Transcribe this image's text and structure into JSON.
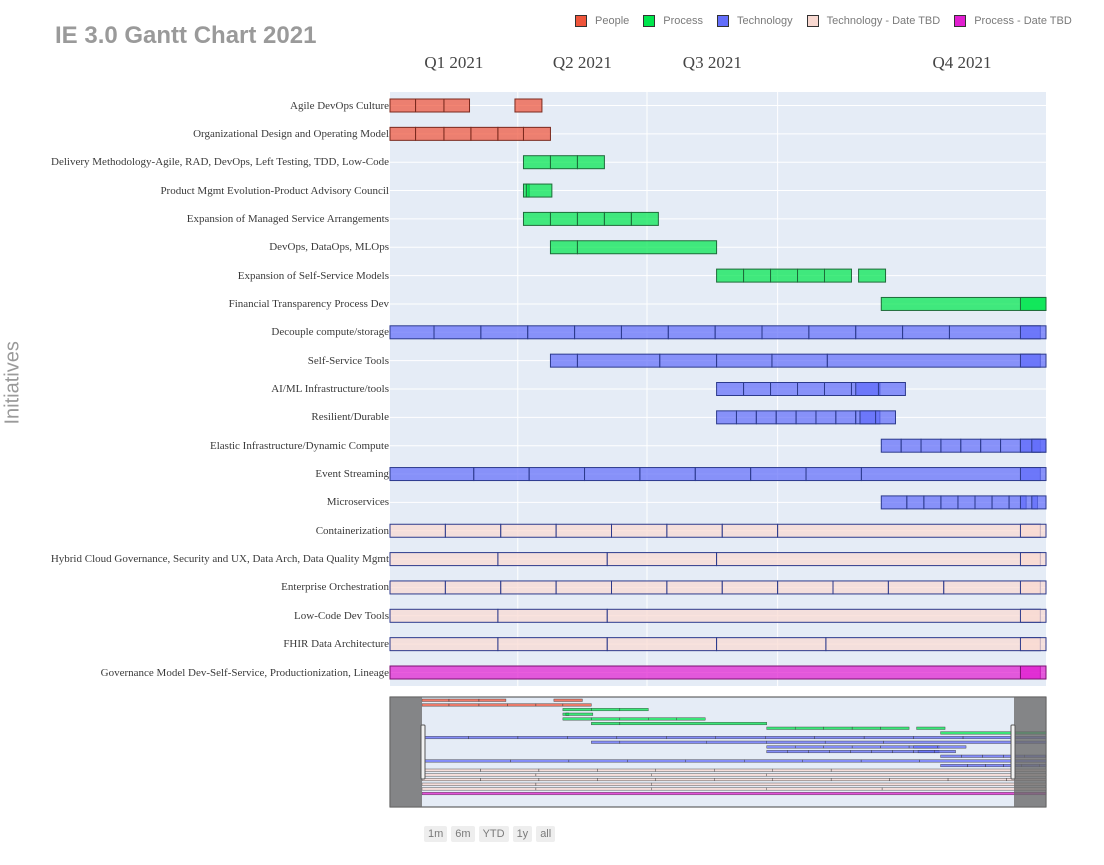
{
  "title": "IE 3.0 Gantt Chart 2021",
  "legend": [
    {
      "name": "People",
      "color": "#ef553b"
    },
    {
      "name": "Process",
      "color": "#00e64d"
    },
    {
      "name": "Technology",
      "color": "#636efa"
    },
    {
      "name": "Technology - Date TBD",
      "color": "#f9d9d1"
    },
    {
      "name": "Process - Date TBD",
      "color": "#e11fd0"
    }
  ],
  "range_buttons": [
    "1m",
    "6m",
    "YTD",
    "1y",
    "all"
  ],
  "chart_data": {
    "type": "gantt",
    "ylabel": "Initiatives",
    "x_tick_labels": [
      "Q1 2021",
      "Q2 2021",
      "Q3 2021",
      "Q4 2021"
    ],
    "x_range": [
      "2021-01-01",
      "2021-12-31"
    ],
    "grid": true,
    "legend_position": "top-right",
    "range_slider": true,
    "tasks": [
      {
        "name": "Agile DevOps Culture",
        "category": "People",
        "segments": [
          [
            "2021-01-01",
            "2021-01-19"
          ],
          [
            "2021-01-19",
            "2021-02-08"
          ],
          [
            "2021-02-08",
            "2021-02-26"
          ],
          [
            "2021-03-30",
            "2021-04-18"
          ]
        ]
      },
      {
        "name": "Organizational Design and Operating Model",
        "category": "People",
        "segments": [
          [
            "2021-01-01",
            "2021-01-19"
          ],
          [
            "2021-01-19",
            "2021-02-08"
          ],
          [
            "2021-02-08",
            "2021-02-27"
          ],
          [
            "2021-02-27",
            "2021-03-18"
          ],
          [
            "2021-03-18",
            "2021-04-05"
          ],
          [
            "2021-04-05",
            "2021-04-24"
          ]
        ]
      },
      {
        "name": "Delivery Methodology-Agile, RAD, DevOps, Left Testing, TDD, Low-Code",
        "category": "Process",
        "segments": [
          [
            "2021-04-05",
            "2021-04-24"
          ],
          [
            "2021-04-24",
            "2021-05-13"
          ],
          [
            "2021-05-13",
            "2021-06-01"
          ]
        ]
      },
      {
        "name": "Product Mgmt Evolution-Product Advisory Council",
        "category": "Process",
        "segments": [
          [
            "2021-04-05",
            "2021-04-09"
          ],
          [
            "2021-04-07",
            "2021-04-25"
          ]
        ]
      },
      {
        "name": "Expansion of Managed Service Arrangements",
        "category": "Process",
        "segments": [
          [
            "2021-04-05",
            "2021-04-24"
          ],
          [
            "2021-04-24",
            "2021-05-13"
          ],
          [
            "2021-05-13",
            "2021-06-01"
          ],
          [
            "2021-06-01",
            "2021-06-20"
          ],
          [
            "2021-06-20",
            "2021-07-09"
          ]
        ]
      },
      {
        "name": "DevOps, DataOps, MLOps",
        "category": "Process",
        "segments": [
          [
            "2021-04-24",
            "2021-05-13"
          ],
          [
            "2021-05-13",
            "2021-08-19"
          ]
        ]
      },
      {
        "name": "Expansion of Self-Service Models",
        "category": "Process",
        "segments": [
          [
            "2021-08-19",
            "2021-09-07"
          ],
          [
            "2021-09-07",
            "2021-09-26"
          ],
          [
            "2021-09-26",
            "2021-10-15"
          ],
          [
            "2021-10-15",
            "2021-11-03"
          ],
          [
            "2021-11-03",
            "2021-11-22"
          ],
          [
            "2021-11-27",
            "2021-12-16"
          ]
        ]
      },
      {
        "name": "Financial Transparency Process Dev",
        "category": "Process",
        "segments": [
          [
            "2021-12-13",
            "2022-04-19"
          ],
          [
            "2022-03-21",
            "2022-04-08"
          ]
        ]
      },
      {
        "name": "Decouple compute/storage",
        "category": "Technology",
        "segments": [
          [
            "2021-01-01",
            "2021-02-01"
          ],
          [
            "2021-02-01",
            "2021-03-06"
          ],
          [
            "2021-03-06",
            "2021-04-08"
          ],
          [
            "2021-04-08",
            "2021-05-11"
          ],
          [
            "2021-05-11",
            "2021-06-13"
          ],
          [
            "2021-06-13",
            "2021-07-16"
          ],
          [
            "2021-07-16",
            "2021-08-18"
          ],
          [
            "2021-08-18",
            "2021-09-20"
          ],
          [
            "2021-09-20",
            "2021-10-23"
          ],
          [
            "2021-10-23",
            "2021-11-25"
          ],
          [
            "2021-11-25",
            "2021-12-28"
          ],
          [
            "2021-12-28",
            "2022-01-30"
          ],
          [
            "2022-01-30",
            "2022-04-04"
          ],
          [
            "2022-03-21",
            "2022-04-08"
          ]
        ]
      },
      {
        "name": "Self-Service Tools",
        "category": "Technology",
        "segments": [
          [
            "2021-04-24",
            "2021-05-13"
          ],
          [
            "2021-05-13",
            "2021-07-10"
          ],
          [
            "2021-07-10",
            "2021-08-19"
          ],
          [
            "2021-08-19",
            "2021-09-27"
          ],
          [
            "2021-09-27",
            "2021-11-05"
          ],
          [
            "2021-11-05",
            "2022-04-04"
          ],
          [
            "2022-03-21",
            "2022-04-08"
          ]
        ]
      },
      {
        "name": "AI/ML Infrastructure/tools",
        "category": "Technology",
        "segments": [
          [
            "2021-08-19",
            "2021-09-07"
          ],
          [
            "2021-09-07",
            "2021-09-26"
          ],
          [
            "2021-09-26",
            "2021-10-15"
          ],
          [
            "2021-10-15",
            "2021-11-03"
          ],
          [
            "2021-11-03",
            "2021-11-22"
          ],
          [
            "2021-11-22",
            "2021-12-11"
          ],
          [
            "2021-11-25",
            "2021-12-12"
          ],
          [
            "2021-12-11",
            "2021-12-30"
          ]
        ]
      },
      {
        "name": "Resilient/Durable",
        "category": "Technology",
        "segments": [
          [
            "2021-08-19",
            "2021-09-02"
          ],
          [
            "2021-09-02",
            "2021-09-16"
          ],
          [
            "2021-09-16",
            "2021-09-30"
          ],
          [
            "2021-09-30",
            "2021-10-14"
          ],
          [
            "2021-10-14",
            "2021-10-28"
          ],
          [
            "2021-10-28",
            "2021-11-11"
          ],
          [
            "2021-11-11",
            "2021-11-25"
          ],
          [
            "2021-11-25",
            "2021-12-09"
          ],
          [
            "2021-11-28",
            "2021-12-12"
          ],
          [
            "2021-12-09",
            "2021-12-23"
          ]
        ]
      },
      {
        "name": "Elastic Infrastructure/Dynamic Compute",
        "category": "Technology",
        "segments": [
          [
            "2021-12-13",
            "2021-12-27"
          ],
          [
            "2021-12-27",
            "2022-01-10"
          ],
          [
            "2022-01-10",
            "2022-01-24"
          ],
          [
            "2022-01-24",
            "2022-02-07"
          ],
          [
            "2022-02-07",
            "2022-02-21"
          ],
          [
            "2022-02-21",
            "2022-03-07"
          ],
          [
            "2022-03-07",
            "2022-03-21"
          ],
          [
            "2022-03-21",
            "2022-04-04"
          ],
          [
            "2022-03-21",
            "2022-04-08"
          ],
          [
            "2022-03-29",
            "2022-04-08"
          ]
        ]
      },
      {
        "name": "Event Streaming",
        "category": "Technology",
        "segments": [
          [
            "2021-01-01",
            "2021-03-01"
          ],
          [
            "2021-03-01",
            "2021-04-09"
          ],
          [
            "2021-04-09",
            "2021-05-18"
          ],
          [
            "2021-05-18",
            "2021-06-26"
          ],
          [
            "2021-06-26",
            "2021-08-04"
          ],
          [
            "2021-08-04",
            "2021-09-12"
          ],
          [
            "2021-09-12",
            "2021-10-21"
          ],
          [
            "2021-10-21",
            "2021-11-29"
          ],
          [
            "2021-11-29",
            "2022-04-04"
          ],
          [
            "2022-03-21",
            "2022-04-08"
          ]
        ]
      },
      {
        "name": "Microservices",
        "category": "Technology",
        "segments": [
          [
            "2021-12-13",
            "2021-12-31"
          ],
          [
            "2021-12-31",
            "2022-01-12"
          ],
          [
            "2022-01-12",
            "2022-01-24"
          ],
          [
            "2022-01-24",
            "2022-02-05"
          ],
          [
            "2022-02-05",
            "2022-02-17"
          ],
          [
            "2022-02-17",
            "2022-03-01"
          ],
          [
            "2022-03-01",
            "2022-03-13"
          ],
          [
            "2022-03-13",
            "2022-03-25"
          ],
          [
            "2022-03-21",
            "2022-04-02"
          ],
          [
            "2022-03-29",
            "2022-04-08"
          ]
        ]
      },
      {
        "name": "Containerization",
        "category": "Technology - Date TBD",
        "segments": [
          [
            "2021-01-01",
            "2021-02-09"
          ],
          [
            "2021-02-09",
            "2021-03-20"
          ],
          [
            "2021-03-20",
            "2021-04-28"
          ],
          [
            "2021-04-28",
            "2021-06-06"
          ],
          [
            "2021-06-06",
            "2021-07-15"
          ],
          [
            "2021-07-15",
            "2021-08-23"
          ],
          [
            "2021-08-23",
            "2021-10-01"
          ],
          [
            "2021-10-01",
            "2022-04-04"
          ],
          [
            "2022-03-21",
            "2022-04-08"
          ]
        ]
      },
      {
        "name": "Hybrid Cloud Governance, Security and UX, Data Arch, Data Quality Mgmt",
        "category": "Technology - Date TBD",
        "segments": [
          [
            "2021-01-01",
            "2021-03-18"
          ],
          [
            "2021-03-18",
            "2021-06-03"
          ],
          [
            "2021-06-03",
            "2021-08-19"
          ],
          [
            "2021-08-19",
            "2022-04-04"
          ],
          [
            "2022-03-21",
            "2022-04-08"
          ]
        ]
      },
      {
        "name": "Enterprise Orchestration",
        "category": "Technology - Date TBD",
        "segments": [
          [
            "2021-01-01",
            "2021-02-09"
          ],
          [
            "2021-02-09",
            "2021-03-20"
          ],
          [
            "2021-03-20",
            "2021-04-28"
          ],
          [
            "2021-04-28",
            "2021-06-06"
          ],
          [
            "2021-06-06",
            "2021-07-15"
          ],
          [
            "2021-07-15",
            "2021-08-23"
          ],
          [
            "2021-08-23",
            "2021-10-01"
          ],
          [
            "2021-10-01",
            "2021-11-09"
          ],
          [
            "2021-11-09",
            "2021-12-18"
          ],
          [
            "2021-12-18",
            "2022-01-26"
          ],
          [
            "2022-01-26",
            "2022-04-04"
          ],
          [
            "2022-03-21",
            "2022-04-08"
          ]
        ]
      },
      {
        "name": "Low-Code Dev Tools",
        "category": "Technology - Date TBD",
        "segments": [
          [
            "2021-01-01",
            "2021-03-18"
          ],
          [
            "2021-03-18",
            "2021-06-03"
          ],
          [
            "2021-06-03",
            "2022-04-04"
          ],
          [
            "2022-03-21",
            "2022-04-08"
          ]
        ]
      },
      {
        "name": "FHIR Data Architecture",
        "category": "Technology - Date TBD",
        "segments": [
          [
            "2021-01-01",
            "2021-03-18"
          ],
          [
            "2021-03-18",
            "2021-06-03"
          ],
          [
            "2021-06-03",
            "2021-08-19"
          ],
          [
            "2021-08-19",
            "2021-11-04"
          ],
          [
            "2021-11-04",
            "2022-04-04"
          ],
          [
            "2022-03-21",
            "2022-04-08"
          ]
        ]
      },
      {
        "name": "Governance Model Dev-Self-Service, Productionization, Lineage",
        "category": "Process - Date TBD",
        "segments": [
          [
            "2021-01-01",
            "2022-04-04"
          ],
          [
            "2022-03-21",
            "2022-04-08"
          ]
        ]
      }
    ]
  }
}
